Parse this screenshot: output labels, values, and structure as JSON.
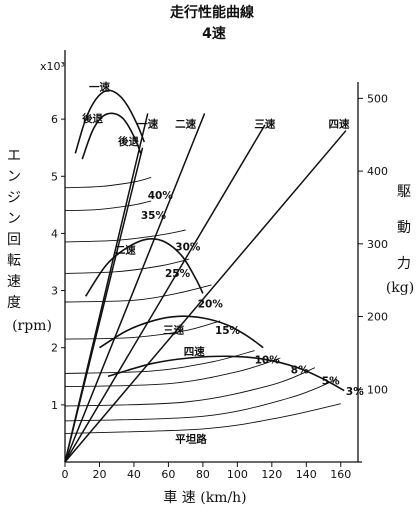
{
  "chart_data": {
    "type": "line",
    "title": "走行性能曲線",
    "subtitle": "4速",
    "xlabel": "車 速 (km/h)",
    "ylabel_left_chars": [
      "エ",
      "ン",
      "ジ",
      "ン",
      "回",
      "転",
      "速",
      "度"
    ],
    "ylabel_left_unit": "(rpm)",
    "ylabel_right_chars": [
      "駆",
      "動",
      "力"
    ],
    "ylabel_right_unit": "(kg)",
    "left_axis_multiplier": "x10³",
    "xlim": [
      0,
      170
    ],
    "ylim_left": [
      0,
      7
    ],
    "ylim_right": [
      0,
      550
    ],
    "x_ticks": [
      0,
      20,
      40,
      60,
      80,
      100,
      120,
      140,
      160
    ],
    "y_left_ticks": [
      1,
      2,
      3,
      4,
      5,
      6
    ],
    "y_right_ticks": [
      100,
      200,
      300,
      400,
      500
    ],
    "gear_lines": [
      {
        "name": "後退",
        "label": "後退",
        "points": [
          [
            0,
            0
          ],
          [
            45,
            5.5
          ]
        ]
      },
      {
        "name": "一速",
        "label": "一速",
        "points": [
          [
            0,
            0
          ],
          [
            48,
            6.1
          ]
        ]
      },
      {
        "name": "二速",
        "label": "二速",
        "points": [
          [
            0,
            0
          ],
          [
            81,
            6.1
          ]
        ]
      },
      {
        "name": "三速",
        "label": "三速",
        "points": [
          [
            0,
            0
          ],
          [
            116,
            5.9
          ]
        ]
      },
      {
        "name": "四速",
        "label": "四速",
        "points": [
          [
            0,
            0
          ],
          [
            163,
            5.8
          ]
        ]
      }
    ],
    "traction_curves": [
      {
        "name": "一速",
        "label": "一速",
        "points": [
          [
            6,
            5.4
          ],
          [
            12,
            6.0
          ],
          [
            18,
            6.35
          ],
          [
            24,
            6.5
          ],
          [
            30,
            6.45
          ],
          [
            36,
            6.25
          ],
          [
            42,
            5.9
          ],
          [
            46,
            5.6
          ]
        ]
      },
      {
        "name": "後退",
        "label": "後退",
        "points": [
          [
            10,
            5.3
          ],
          [
            16,
            5.8
          ],
          [
            22,
            6.05
          ],
          [
            28,
            6.1
          ],
          [
            34,
            6.0
          ],
          [
            40,
            5.7
          ],
          [
            44,
            5.4
          ]
        ]
      },
      {
        "name": "二速",
        "label": "二速",
        "points": [
          [
            12,
            2.9
          ],
          [
            24,
            3.45
          ],
          [
            36,
            3.75
          ],
          [
            48,
            3.9
          ],
          [
            58,
            3.85
          ],
          [
            68,
            3.6
          ],
          [
            76,
            3.2
          ],
          [
            80,
            2.95
          ]
        ]
      },
      {
        "name": "三速",
        "label": "三速",
        "points": [
          [
            20,
            2.0
          ],
          [
            36,
            2.3
          ],
          [
            52,
            2.48
          ],
          [
            66,
            2.55
          ],
          [
            80,
            2.52
          ],
          [
            94,
            2.4
          ],
          [
            106,
            2.2
          ],
          [
            115,
            2.0
          ]
        ]
      },
      {
        "name": "四速",
        "label": "四速",
        "points": [
          [
            25,
            1.5
          ],
          [
            50,
            1.72
          ],
          [
            72,
            1.82
          ],
          [
            95,
            1.85
          ],
          [
            115,
            1.8
          ],
          [
            135,
            1.65
          ],
          [
            150,
            1.45
          ],
          [
            162,
            1.25
          ]
        ]
      }
    ],
    "resistance_curves": [
      {
        "label": "40%",
        "points": [
          [
            0,
            4.8
          ],
          [
            20,
            4.82
          ],
          [
            40,
            4.9
          ],
          [
            50,
            4.98
          ]
        ]
      },
      {
        "label": "35%",
        "points": [
          [
            0,
            4.4
          ],
          [
            20,
            4.42
          ],
          [
            40,
            4.5
          ],
          [
            50,
            4.57
          ]
        ]
      },
      {
        "label": "30%",
        "points": [
          [
            0,
            3.85
          ],
          [
            30,
            3.88
          ],
          [
            55,
            3.97
          ],
          [
            70,
            4.06
          ]
        ]
      },
      {
        "label": "25%",
        "points": [
          [
            0,
            3.3
          ],
          [
            30,
            3.33
          ],
          [
            55,
            3.43
          ],
          [
            72,
            3.55
          ]
        ]
      },
      {
        "label": "20%",
        "points": [
          [
            0,
            2.8
          ],
          [
            40,
            2.83
          ],
          [
            65,
            2.95
          ],
          [
            85,
            3.1
          ]
        ]
      },
      {
        "label": "15%",
        "points": [
          [
            0,
            2.15
          ],
          [
            40,
            2.18
          ],
          [
            70,
            2.3
          ],
          [
            90,
            2.47
          ]
        ]
      },
      {
        "label": "10%",
        "points": [
          [
            0,
            1.55
          ],
          [
            50,
            1.59
          ],
          [
            85,
            1.75
          ],
          [
            110,
            1.95
          ]
        ]
      },
      {
        "label": "8%",
        "points": [
          [
            0,
            1.32
          ],
          [
            60,
            1.37
          ],
          [
            100,
            1.58
          ],
          [
            125,
            1.82
          ]
        ]
      },
      {
        "label": "5%",
        "points": [
          [
            0,
            0.98
          ],
          [
            70,
            1.05
          ],
          [
            120,
            1.35
          ],
          [
            145,
            1.65
          ]
        ]
      },
      {
        "label": "3%",
        "points": [
          [
            0,
            0.72
          ],
          [
            80,
            0.8
          ],
          [
            130,
            1.12
          ],
          [
            158,
            1.45
          ]
        ]
      },
      {
        "label": "平坦路",
        "points": [
          [
            0,
            0.5
          ],
          [
            80,
            0.58
          ],
          [
            125,
            0.78
          ],
          [
            160,
            1.02
          ]
        ]
      }
    ],
    "grid": false,
    "legend": "none"
  }
}
